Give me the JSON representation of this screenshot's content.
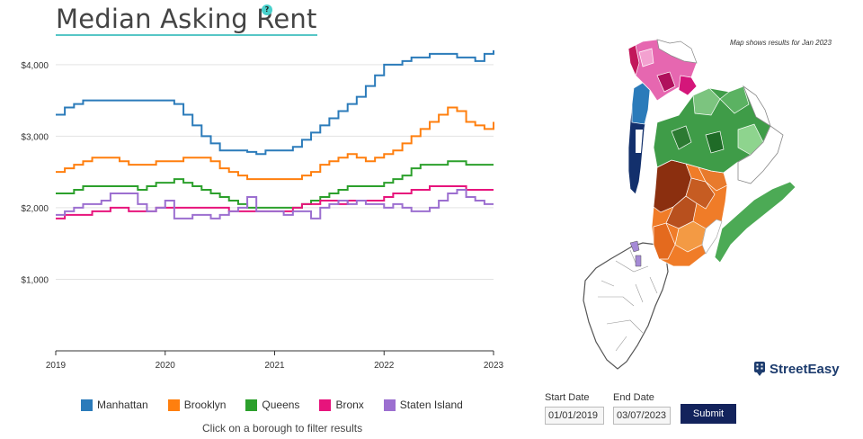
{
  "title": "Median Asking Rent",
  "help_icon_text": "?",
  "map_note": "Map shows results for Jan 2023",
  "hint": "Click on a borough to filter results",
  "brand": "StreetEasy",
  "dates": {
    "start_label": "Start Date",
    "start_value": "01/01/2019",
    "end_label": "End Date",
    "end_value": "03/07/2023"
  },
  "submit_label": "Submit",
  "chart_data": {
    "type": "line",
    "step": true,
    "title": "Median Asking Rent",
    "xlabel": "",
    "ylabel": "",
    "x": [
      2019.0,
      2019.083,
      2019.167,
      2019.25,
      2019.333,
      2019.417,
      2019.5,
      2019.583,
      2019.667,
      2019.75,
      2019.833,
      2019.917,
      2020.0,
      2020.083,
      2020.167,
      2020.25,
      2020.333,
      2020.417,
      2020.5,
      2020.583,
      2020.667,
      2020.75,
      2020.833,
      2020.917,
      2021.0,
      2021.083,
      2021.167,
      2021.25,
      2021.333,
      2021.417,
      2021.5,
      2021.583,
      2021.667,
      2021.75,
      2021.833,
      2021.917,
      2022.0,
      2022.083,
      2022.167,
      2022.25,
      2022.333,
      2022.417,
      2022.5,
      2022.583,
      2022.667,
      2022.75,
      2022.833,
      2022.917,
      2023.0
    ],
    "xticks": [
      "2019",
      "2020",
      "2021",
      "2022",
      "2023"
    ],
    "yticks": [
      "$1,000",
      "$2,000",
      "$3,000",
      "$4,000"
    ],
    "ytick_values": [
      1000,
      2000,
      3000,
      4000
    ],
    "ylim": [
      0,
      4400
    ],
    "xlim": [
      2019,
      2023
    ],
    "grid": "horizontal",
    "legend_position": "bottom",
    "series": [
      {
        "name": "Manhattan",
        "color": "#2b7bba",
        "values": [
          3300,
          3400,
          3450,
          3500,
          3500,
          3500,
          3500,
          3500,
          3500,
          3500,
          3500,
          3500,
          3500,
          3450,
          3300,
          3150,
          3000,
          2900,
          2800,
          2800,
          2800,
          2780,
          2750,
          2800,
          2800,
          2800,
          2850,
          2950,
          3050,
          3150,
          3250,
          3350,
          3450,
          3550,
          3700,
          3850,
          4000,
          4000,
          4050,
          4100,
          4100,
          4150,
          4150,
          4150,
          4100,
          4100,
          4050,
          4150,
          4200
        ]
      },
      {
        "name": "Brooklyn",
        "color": "#ff7f0e",
        "values": [
          2500,
          2550,
          2600,
          2650,
          2700,
          2700,
          2700,
          2650,
          2600,
          2600,
          2600,
          2650,
          2650,
          2650,
          2700,
          2700,
          2700,
          2650,
          2550,
          2500,
          2450,
          2400,
          2400,
          2400,
          2400,
          2400,
          2400,
          2450,
          2500,
          2600,
          2650,
          2700,
          2750,
          2700,
          2650,
          2700,
          2750,
          2800,
          2900,
          3000,
          3100,
          3200,
          3300,
          3400,
          3350,
          3200,
          3150,
          3100,
          3200
        ]
      },
      {
        "name": "Queens",
        "color": "#2ca02c",
        "values": [
          2200,
          2200,
          2250,
          2300,
          2300,
          2300,
          2300,
          2300,
          2300,
          2250,
          2300,
          2350,
          2350,
          2400,
          2350,
          2300,
          2250,
          2200,
          2150,
          2100,
          2050,
          2000,
          2000,
          2000,
          2000,
          2000,
          2000,
          2050,
          2100,
          2150,
          2200,
          2250,
          2300,
          2300,
          2300,
          2300,
          2350,
          2400,
          2450,
          2550,
          2600,
          2600,
          2600,
          2650,
          2650,
          2600,
          2600,
          2600,
          2600
        ]
      },
      {
        "name": "Bronx",
        "color": "#e7147c",
        "values": [
          1850,
          1900,
          1900,
          1900,
          1950,
          1950,
          2000,
          2000,
          1950,
          1950,
          1950,
          2000,
          2000,
          2000,
          2000,
          2000,
          2000,
          2000,
          2000,
          1950,
          1950,
          1950,
          1950,
          1950,
          1950,
          1950,
          2000,
          2050,
          2050,
          2100,
          2100,
          2050,
          2100,
          2100,
          2100,
          2100,
          2150,
          2200,
          2200,
          2250,
          2250,
          2300,
          2300,
          2300,
          2300,
          2250,
          2250,
          2250,
          2250
        ]
      },
      {
        "name": "Staten Island",
        "color": "#9c6fd0",
        "values": [
          1900,
          1950,
          2000,
          2050,
          2050,
          2100,
          2200,
          2200,
          2200,
          2050,
          1950,
          2000,
          2100,
          1850,
          1850,
          1900,
          1900,
          1850,
          1900,
          1950,
          2000,
          2150,
          1950,
          1950,
          1950,
          1900,
          1950,
          1950,
          1850,
          2000,
          2050,
          2100,
          2050,
          2100,
          2050,
          2050,
          2000,
          2050,
          2000,
          1950,
          1950,
          2000,
          2100,
          2200,
          2250,
          2150,
          2100,
          2050,
          2050
        ]
      }
    ]
  }
}
